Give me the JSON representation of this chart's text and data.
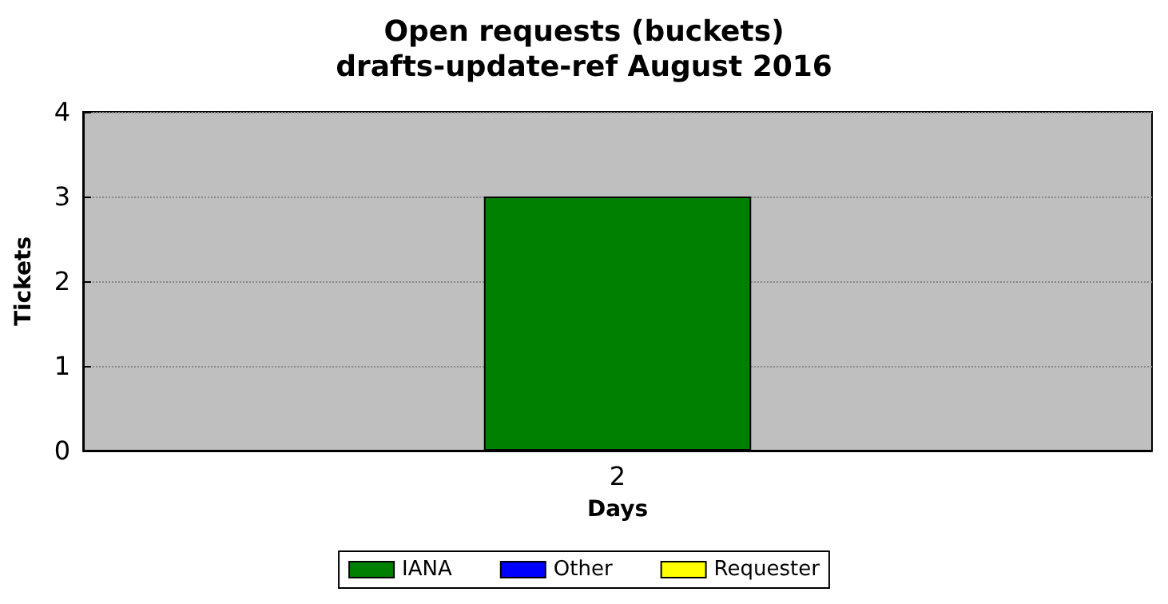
{
  "chart_data": {
    "type": "bar",
    "title": "Open requests (buckets)",
    "subtitle": "drafts-update-ref August 2016",
    "xlabel": "Days",
    "ylabel": "Tickets",
    "categories": [
      "2"
    ],
    "series": [
      {
        "name": "IANA",
        "color": "#008000",
        "values": [
          3
        ]
      },
      {
        "name": "Other",
        "color": "#0000ff",
        "values": [
          0
        ]
      },
      {
        "name": "Requester",
        "color": "#ffff00",
        "values": [
          0
        ]
      }
    ],
    "stacked": true,
    "ylim": [
      0,
      4
    ],
    "yticks": [
      0,
      1,
      2,
      3,
      4
    ],
    "grid": "y",
    "legend": "bottom"
  }
}
